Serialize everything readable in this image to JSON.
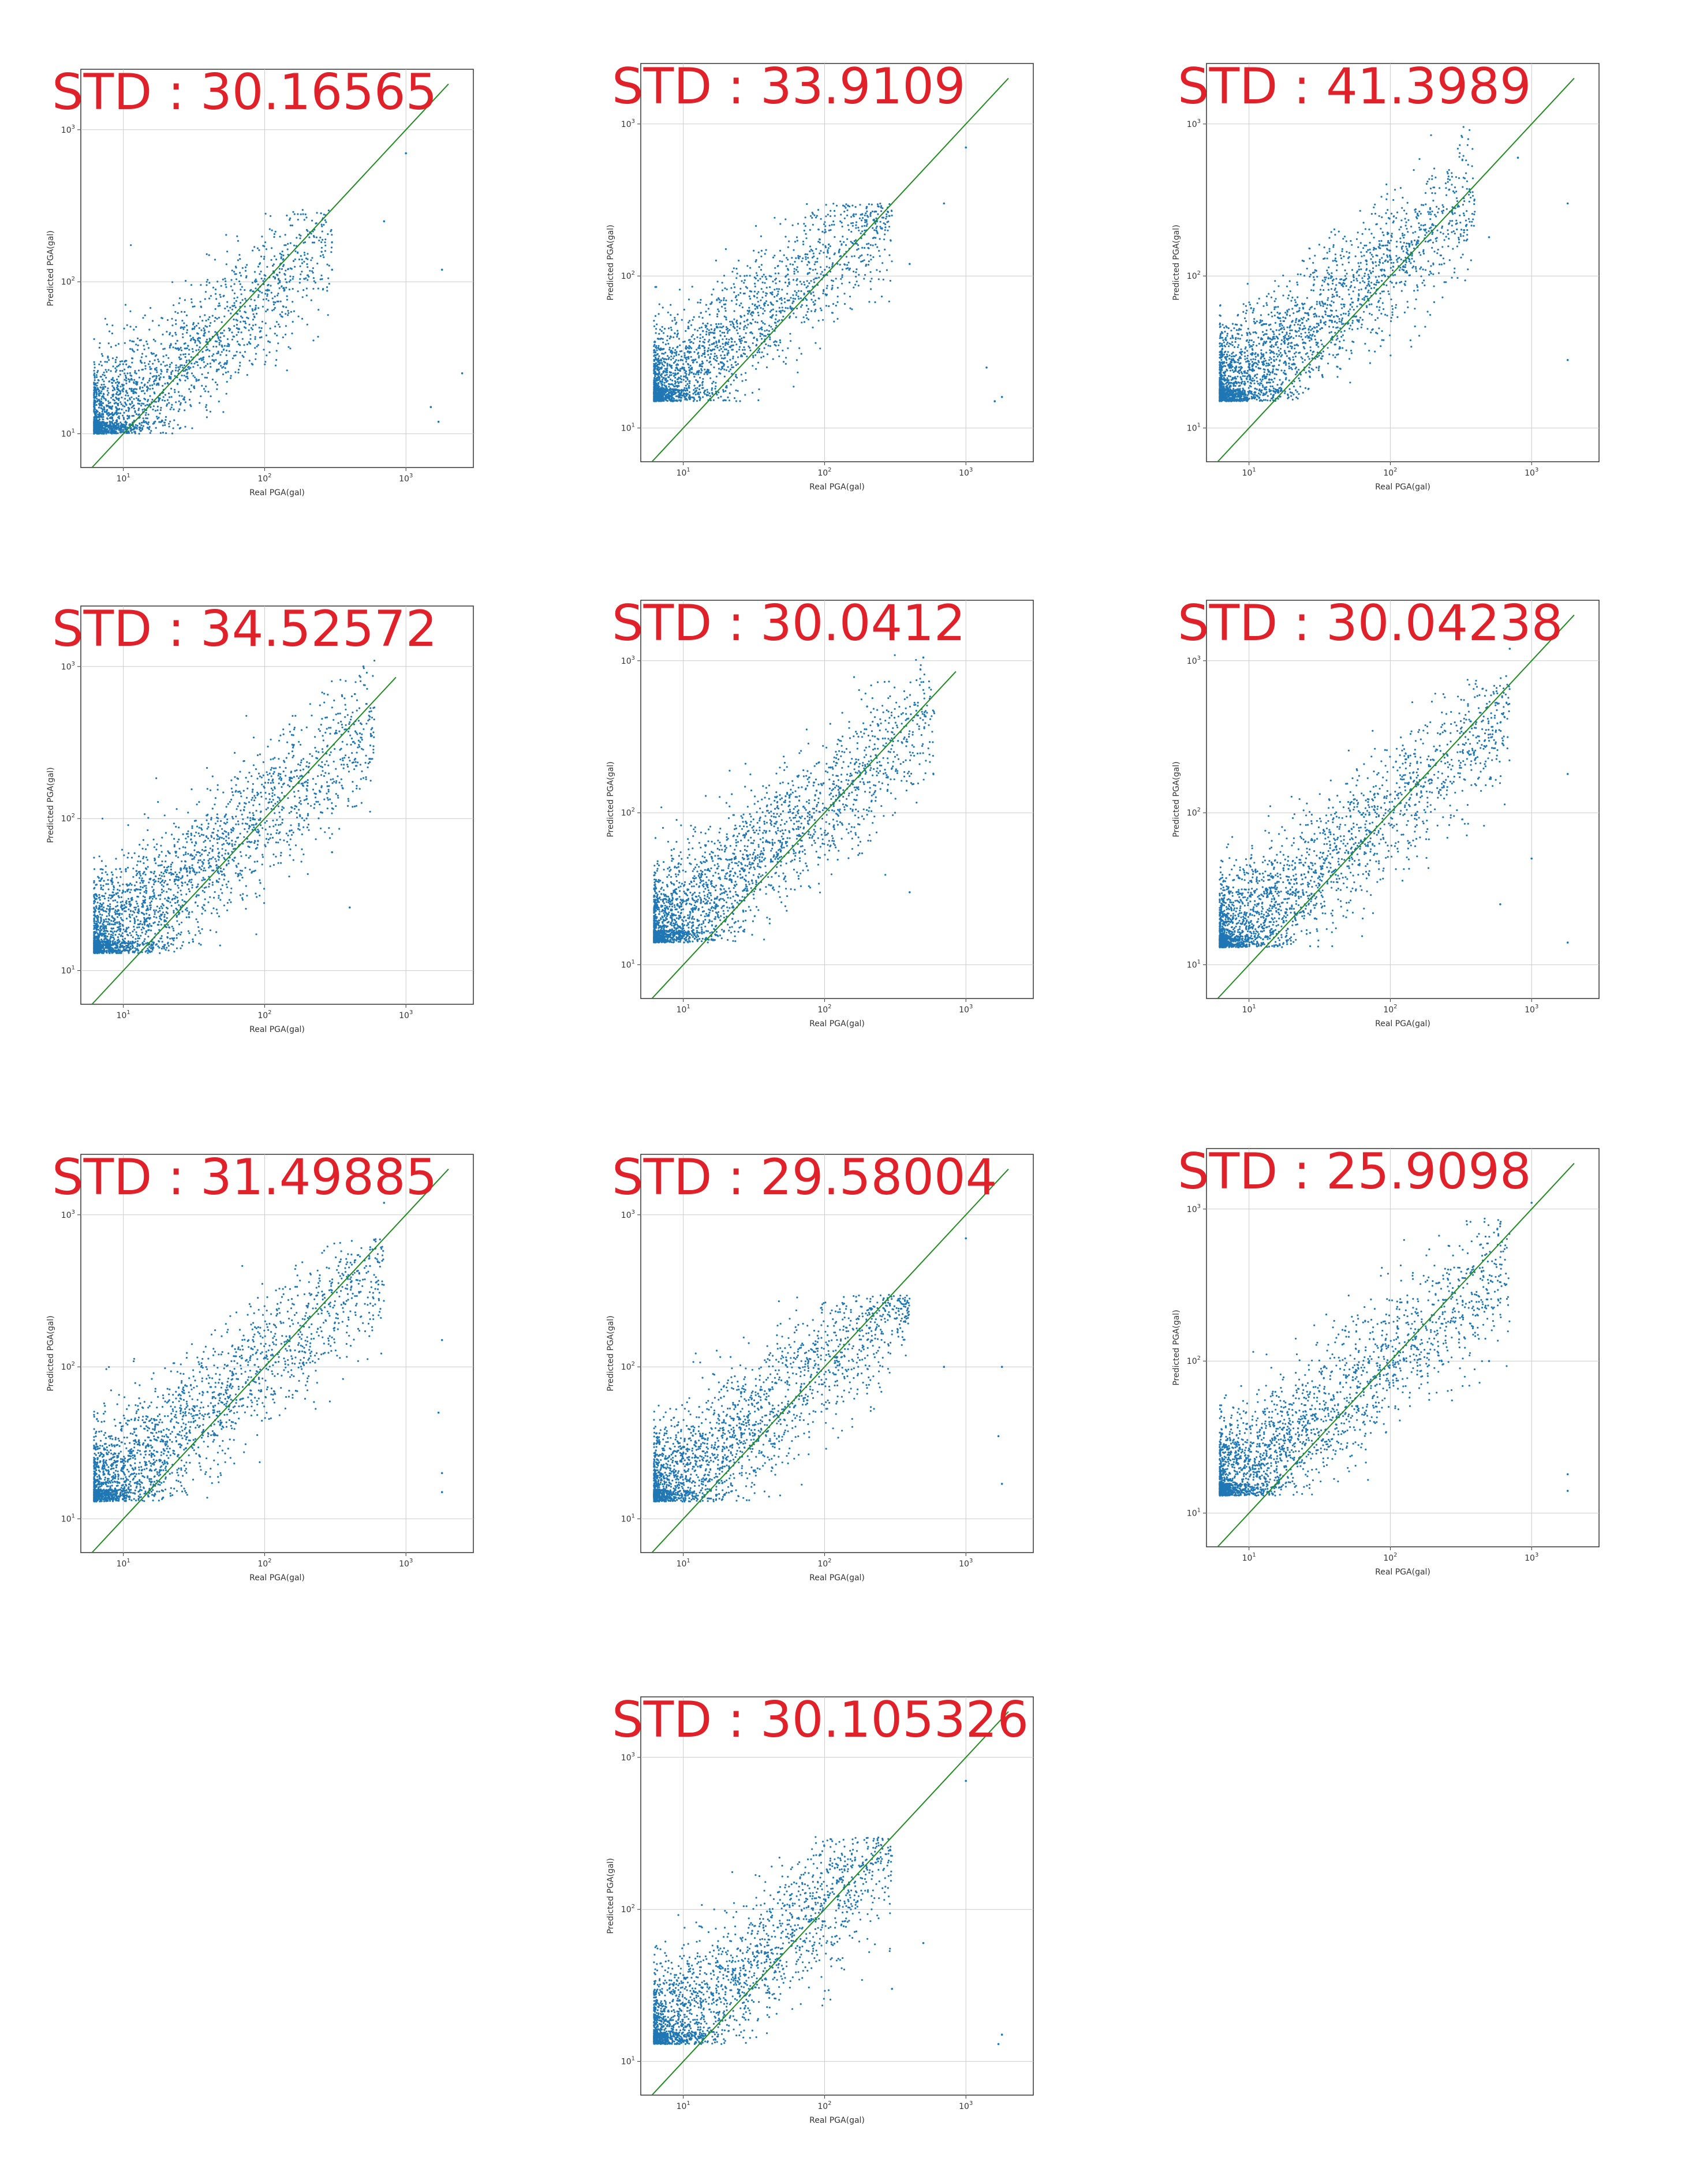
{
  "colors": {
    "points": "#1f77b4",
    "diagonal": "#228b22",
    "label": "#e0212a",
    "grid": "#cccccc",
    "frame": "#333333"
  },
  "chart_data": [
    {
      "type": "scatter",
      "std_label": "STD : 30.16565",
      "xlabel": "Real PGA(gal)",
      "ylabel": "Predicted PGA(gal)",
      "xscale": "log",
      "yscale": "log",
      "xlim": [
        5,
        3000
      ],
      "ylim": [
        6,
        2500
      ],
      "xticks": [
        "10^1",
        "10^2",
        "10^3"
      ],
      "yticks": [
        "10^1",
        "10^2",
        "10^3"
      ],
      "grid": true,
      "reference_line": {
        "x": [
          6,
          2000
        ],
        "y": [
          6,
          2000
        ]
      },
      "distribution": {
        "y_floor": 10,
        "y_max": 300,
        "x_max": 300,
        "n_points": 2200
      },
      "outliers": [
        [
          1000,
          700
        ],
        [
          700,
          250
        ],
        [
          1800,
          120
        ],
        [
          1700,
          12
        ],
        [
          1500,
          15
        ],
        [
          300,
          120
        ],
        [
          2500,
          25
        ]
      ]
    },
    {
      "type": "scatter",
      "std_label": "STD : 33.9109",
      "xlabel": "Real PGA(gal)",
      "ylabel": "Predicted PGA(gal)",
      "xscale": "log",
      "yscale": "log",
      "xlim": [
        5,
        3000
      ],
      "ylim": [
        6,
        2500
      ],
      "xticks": [
        "10^1",
        "10^2",
        "10^3"
      ],
      "yticks": [
        "10^1",
        "10^2",
        "10^3"
      ],
      "grid": true,
      "reference_line": {
        "x": [
          6,
          2000
        ],
        "y": [
          6,
          2000
        ]
      },
      "distribution": {
        "y_floor": 15,
        "y_max": 300,
        "x_max": 300,
        "n_points": 2200
      },
      "outliers": [
        [
          1000,
          700
        ],
        [
          700,
          300
        ],
        [
          1800,
          16
        ],
        [
          1600,
          15
        ],
        [
          1400,
          25
        ],
        [
          400,
          120
        ]
      ]
    },
    {
      "type": "scatter",
      "std_label": "STD : 41.3989",
      "xlabel": "Real PGA(gal)",
      "ylabel": "Predicted PGA(gal)",
      "xscale": "log",
      "yscale": "log",
      "xlim": [
        5,
        3000
      ],
      "ylim": [
        6,
        2500
      ],
      "xticks": [
        "10^1",
        "10^2",
        "10^3"
      ],
      "yticks": [
        "10^1",
        "10^2",
        "10^3"
      ],
      "grid": true,
      "reference_line": {
        "x": [
          6,
          2000
        ],
        "y": [
          6,
          2000
        ]
      },
      "distribution": {
        "y_floor": 15,
        "y_max": 1200,
        "x_max": 400,
        "n_points": 2600
      },
      "outliers": [
        [
          1800,
          300
        ],
        [
          1800,
          28
        ],
        [
          800,
          600
        ],
        [
          500,
          180
        ]
      ]
    },
    {
      "type": "scatter",
      "std_label": "STD : 34.52572",
      "xlabel": "Real PGA(gal)",
      "ylabel": "Predicted PGA(gal)",
      "xscale": "log",
      "yscale": "log",
      "xlim": [
        5,
        3000
      ],
      "ylim": [
        6,
        2500
      ],
      "xticks": [
        "10^1",
        "10^2",
        "10^3"
      ],
      "yticks": [
        "10^1",
        "10^2",
        "10^3"
      ],
      "grid": true,
      "reference_line": {
        "x": [
          6,
          850
        ],
        "y": [
          6,
          850
        ]
      },
      "distribution": {
        "y_floor": 13,
        "y_max": 1100,
        "x_max": 600,
        "n_points": 2600
      },
      "outliers": [
        [
          500,
          1000
        ],
        [
          400,
          26
        ],
        [
          300,
          60
        ],
        [
          250,
          110
        ]
      ]
    },
    {
      "type": "scatter",
      "std_label": "STD : 30.0412",
      "xlabel": "Real PGA(gal)",
      "ylabel": "Predicted PGA(gal)",
      "xscale": "log",
      "yscale": "log",
      "xlim": [
        5,
        3000
      ],
      "ylim": [
        6,
        2500
      ],
      "xticks": [
        "10^1",
        "10^2",
        "10^3"
      ],
      "yticks": [
        "10^1",
        "10^2",
        "10^3"
      ],
      "grid": true,
      "reference_line": {
        "x": [
          6,
          850
        ],
        "y": [
          6,
          850
        ]
      },
      "distribution": {
        "y_floor": 14,
        "y_max": 1100,
        "x_max": 600,
        "n_points": 2600
      },
      "outliers": [
        [
          500,
          1050
        ],
        [
          400,
          30
        ],
        [
          200,
          500
        ]
      ]
    },
    {
      "type": "scatter",
      "std_label": "STD : 30.04238",
      "xlabel": "Real PGA(gal)",
      "ylabel": "Predicted PGA(gal)",
      "xscale": "log",
      "yscale": "log",
      "xlim": [
        5,
        3000
      ],
      "ylim": [
        6,
        2500
      ],
      "xticks": [
        "10^1",
        "10^2",
        "10^3"
      ],
      "yticks": [
        "10^1",
        "10^2",
        "10^3"
      ],
      "grid": true,
      "reference_line": {
        "x": [
          6,
          2000
        ],
        "y": [
          6,
          2000
        ]
      },
      "distribution": {
        "y_floor": 13,
        "y_max": 800,
        "x_max": 700,
        "n_points": 2400
      },
      "outliers": [
        [
          1800,
          180
        ],
        [
          1800,
          14
        ],
        [
          1000,
          50
        ],
        [
          700,
          1200
        ],
        [
          600,
          25
        ]
      ]
    },
    {
      "type": "scatter",
      "std_label": "STD : 31.49885",
      "xlabel": "Real PGA(gal)",
      "ylabel": "Predicted PGA(gal)",
      "xscale": "log",
      "yscale": "log",
      "xlim": [
        5,
        3000
      ],
      "ylim": [
        6,
        2500
      ],
      "xticks": [
        "10^1",
        "10^2",
        "10^3"
      ],
      "yticks": [
        "10^1",
        "10^2",
        "10^3"
      ],
      "grid": true,
      "reference_line": {
        "x": [
          6,
          2000
        ],
        "y": [
          6,
          2000
        ]
      },
      "distribution": {
        "y_floor": 13,
        "y_max": 700,
        "x_max": 700,
        "n_points": 2400
      },
      "outliers": [
        [
          1800,
          150
        ],
        [
          1800,
          20
        ],
        [
          1700,
          50
        ],
        [
          1800,
          15
        ],
        [
          700,
          1200
        ]
      ]
    },
    {
      "type": "scatter",
      "std_label": "STD : 29.58004",
      "xlabel": "Real PGA(gal)",
      "ylabel": "Predicted PGA(gal)",
      "xscale": "log",
      "yscale": "log",
      "xlim": [
        5,
        3000
      ],
      "ylim": [
        6,
        2500
      ],
      "xticks": [
        "10^1",
        "10^2",
        "10^3"
      ],
      "yticks": [
        "10^1",
        "10^2",
        "10^3"
      ],
      "grid": true,
      "reference_line": {
        "x": [
          6,
          2000
        ],
        "y": [
          6,
          2000
        ]
      },
      "distribution": {
        "y_floor": 13,
        "y_max": 300,
        "x_max": 400,
        "n_points": 2200
      },
      "outliers": [
        [
          1800,
          100
        ],
        [
          1700,
          35
        ],
        [
          1800,
          17
        ],
        [
          1000,
          700
        ],
        [
          700,
          100
        ]
      ]
    },
    {
      "type": "scatter",
      "std_label": "STD : 25.9098",
      "xlabel": "Real PGA(gal)",
      "ylabel": "Predicted PGA(gal)",
      "xscale": "log",
      "yscale": "log",
      "xlim": [
        5,
        3000
      ],
      "ylim": [
        6,
        2500
      ],
      "xticks": [
        "10^1",
        "10^2",
        "10^3"
      ],
      "yticks": [
        "10^1",
        "10^2",
        "10^3"
      ],
      "grid": true,
      "reference_line": {
        "x": [
          6,
          2000
        ],
        "y": [
          6,
          2000
        ]
      },
      "distribution": {
        "y_floor": 13,
        "y_max": 900,
        "x_max": 700,
        "n_points": 2400
      },
      "outliers": [
        [
          1800,
          18
        ],
        [
          1800,
          14
        ],
        [
          1000,
          1100
        ],
        [
          600,
          800
        ],
        [
          500,
          100
        ]
      ]
    },
    {
      "type": "scatter",
      "std_label": "STD : 30.105326",
      "xlabel": "Real PGA(gal)",
      "ylabel": "Predicted PGA(gal)",
      "xscale": "log",
      "yscale": "log",
      "xlim": [
        5,
        3000
      ],
      "ylim": [
        6,
        2500
      ],
      "xticks": [
        "10^1",
        "10^2",
        "10^3"
      ],
      "yticks": [
        "10^1",
        "10^2",
        "10^3"
      ],
      "grid": true,
      "reference_line": {
        "x": [
          6,
          2000
        ],
        "y": [
          6,
          2000
        ]
      },
      "distribution": {
        "y_floor": 13,
        "y_max": 300,
        "x_max": 300,
        "n_points": 2200
      },
      "outliers": [
        [
          1800,
          15
        ],
        [
          1700,
          13
        ],
        [
          1000,
          700
        ],
        [
          500,
          60
        ],
        [
          300,
          30
        ]
      ]
    }
  ]
}
